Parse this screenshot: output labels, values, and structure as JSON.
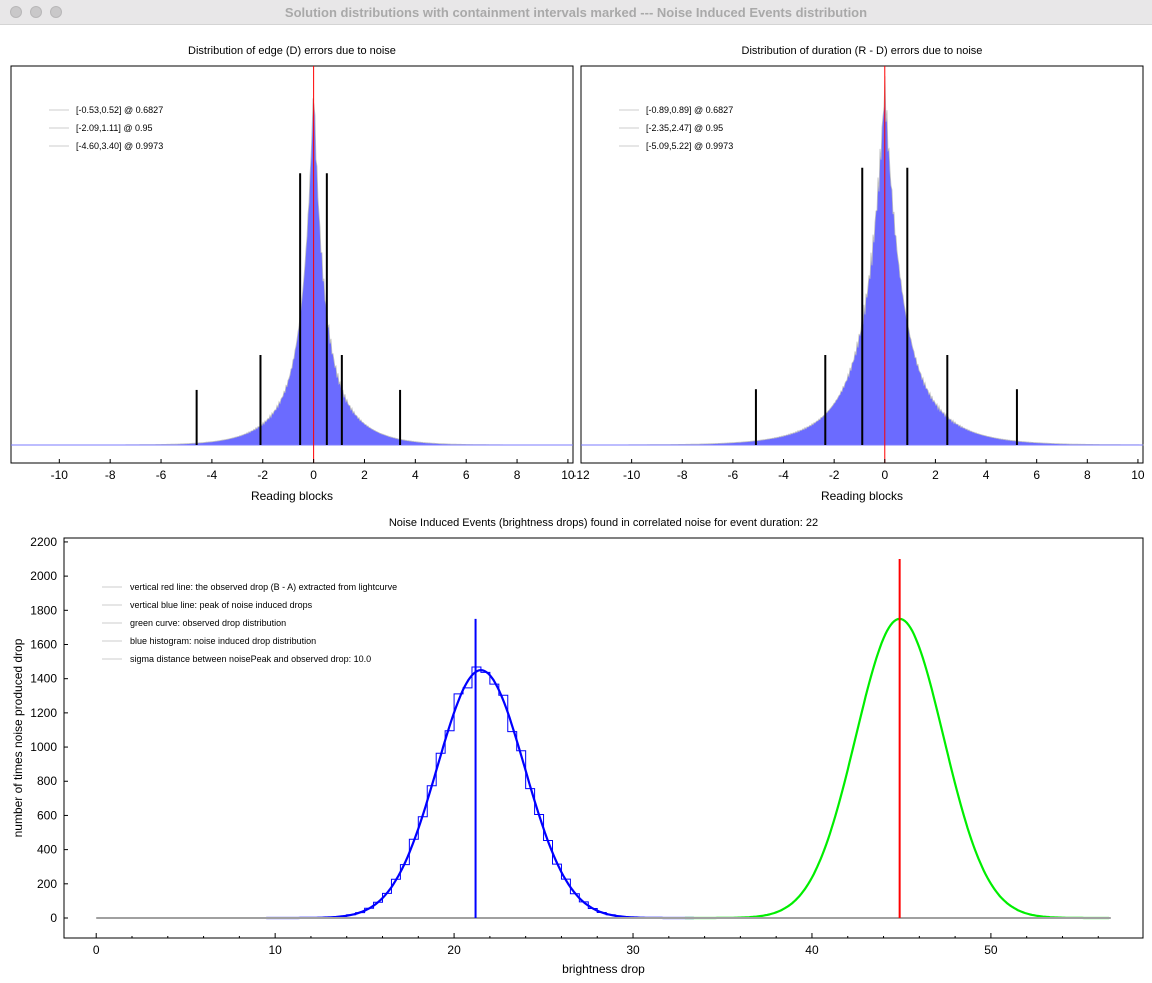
{
  "window": {
    "title": "Solution distributions with containment intervals marked --- Noise Induced Events distribution"
  },
  "colors": {
    "hist_fill": "#6b6bff",
    "hist_edge": "#c0c0c0",
    "zero_line": "#ff0000",
    "interval_line": "#000000",
    "blue": "#0000ff",
    "green": "#00ee00",
    "red": "#ff0000",
    "baseline": "#a0a0a0"
  },
  "chart_data": [
    {
      "type": "bar",
      "title": "Distribution of edge (D) errors due to noise",
      "xlabel": "Reading blocks",
      "xlim": [
        -11.9,
        10.2
      ],
      "xticks": [
        "-10",
        "-8",
        "-6",
        "-4",
        "-2",
        "0",
        "2",
        "4",
        "6",
        "8",
        "10"
      ],
      "distribution": {
        "center": 0.0,
        "core_scale": 0.35,
        "tail_scale": 1.1,
        "tail_weight": 0.35
      },
      "legend": [
        "[-0.53,0.52] @ 0.6827",
        "[-2.09,1.11] @ 0.95",
        "[-4.60,3.40] @ 0.9973"
      ],
      "intervals": [
        {
          "low": -0.53,
          "high": 0.52,
          "level": 0.6827,
          "marker_height": 0.755
        },
        {
          "low": -2.09,
          "high": 1.11,
          "level": 0.95,
          "marker_height": 0.25
        },
        {
          "low": -4.6,
          "high": 3.4,
          "level": 0.9973,
          "marker_height": 0.153
        }
      ]
    },
    {
      "type": "bar",
      "title": "Distribution of duration (R - D) errors due to noise",
      "xlabel": "Reading blocks",
      "xlim": [
        -12.0,
        10.2
      ],
      "xticks": [
        "-12",
        "-10",
        "-8",
        "-6",
        "-4",
        "-2",
        "0",
        "2",
        "4",
        "6",
        "8",
        "10"
      ],
      "distribution": {
        "center": 0.0,
        "core_scale": 0.6,
        "tail_scale": 1.5,
        "tail_weight": 0.35
      },
      "legend": [
        "[-0.89,0.89] @ 0.6827",
        "[-2.35,2.47] @ 0.95",
        "[-5.09,5.22] @ 0.9973"
      ],
      "intervals": [
        {
          "low": -0.89,
          "high": 0.89,
          "level": 0.6827,
          "marker_height": 0.77
        },
        {
          "low": -2.35,
          "high": 2.47,
          "level": 0.95,
          "marker_height": 0.25
        },
        {
          "low": -5.09,
          "high": 5.22,
          "level": 0.9973,
          "marker_height": 0.155
        }
      ]
    },
    {
      "type": "line",
      "title": "Noise Induced Events (brightness drops) found in correlated noise for event duration: 22",
      "xlabel": "brightness drop",
      "ylabel": "number of times noise produced drop",
      "xlim": [
        -1.8,
        58.5
      ],
      "ylim": [
        -117,
        2223
      ],
      "xticks": [
        0,
        10,
        20,
        30,
        40,
        50
      ],
      "yticks": [
        0,
        200,
        400,
        600,
        800,
        1000,
        1200,
        1400,
        1600,
        1800,
        2000,
        2200
      ],
      "series": [
        {
          "name": "blue histogram",
          "kind": "histogram",
          "mean": 21.5,
          "sigma": 2.45,
          "peak": 1450,
          "bin_width": 0.5
        },
        {
          "name": "blue fit",
          "kind": "gaussian",
          "mean": 21.5,
          "sigma": 2.45,
          "peak": 1450
        },
        {
          "name": "green curve",
          "kind": "gaussian",
          "mean": 44.9,
          "sigma": 2.45,
          "peak": 1750
        },
        {
          "name": "baseline",
          "kind": "flat",
          "x": [
            0,
            56.7
          ],
          "y": 0
        }
      ],
      "vlines": [
        {
          "name": "noise peak",
          "x": 21.2,
          "y_top": 1750,
          "color": "#0000ff"
        },
        {
          "name": "observed drop",
          "x": 44.9,
          "y_top": 2100,
          "color": "#ff0000"
        }
      ],
      "legend": [
        "vertical red line: the observed drop (B - A) extracted from lightcurve",
        "vertical blue line: peak of noise induced drops",
        "green curve: observed drop distribution",
        "blue histogram: noise induced drop distribution",
        "sigma distance between noisePeak and observed drop: 10.0"
      ]
    }
  ]
}
